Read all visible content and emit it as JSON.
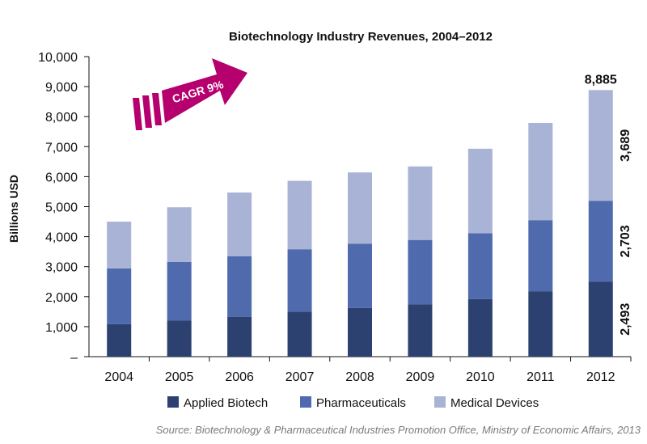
{
  "chart_data": {
    "type": "bar",
    "stacked": true,
    "title": "Biotechnology Industry Revenues, 2004–2012",
    "xlabel": "",
    "ylabel": "Billions USD",
    "ylim": [
      0,
      10000
    ],
    "yticks": [
      "–",
      "1,000",
      "2,000",
      "3,000",
      "4,000",
      "5,000",
      "6,000",
      "7,000",
      "8,000",
      "9,000",
      "10,000"
    ],
    "grid": false,
    "legend_position": "bottom",
    "categories": [
      "2004",
      "2005",
      "2006",
      "2007",
      "2008",
      "2009",
      "2010",
      "2011",
      "2012"
    ],
    "series": [
      {
        "name": "Applied Biotech",
        "color": "#2c4170",
        "values": [
          1080,
          1200,
          1330,
          1500,
          1620,
          1740,
          1920,
          2180,
          2493
        ]
      },
      {
        "name": "Pharmaceuticals",
        "color": "#4f6aad",
        "values": [
          1860,
          1960,
          2020,
          2080,
          2140,
          2150,
          2190,
          2370,
          2703
        ]
      },
      {
        "name": "Medical Devices",
        "color": "#a9b3d5",
        "values": [
          1560,
          1820,
          2120,
          2280,
          2380,
          2450,
          2820,
          3240,
          3689
        ]
      }
    ],
    "annotations": {
      "total_label": "8,885",
      "segment_labels": [
        "2,493",
        "2,703",
        "3,689"
      ],
      "cagr_text": "CAGR 9%",
      "arrow_color": "#b5006e"
    },
    "source": "Source: Biotechnology & Pharmaceutical Industries Promotion Office, Ministry of Economic Affairs, 2013"
  }
}
